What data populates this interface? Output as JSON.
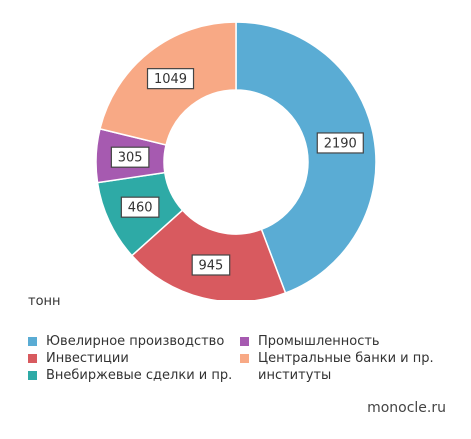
{
  "chart_data": {
    "type": "pie",
    "donut": true,
    "unit_label": "тонн",
    "series": [
      {
        "name": "Ювелирное производство",
        "value": 2190,
        "color": "#5AACD4"
      },
      {
        "name": "Промышленность",
        "value": 305,
        "color": "#A65AB0"
      },
      {
        "name": "Инвестиции",
        "value": 945,
        "color": "#D85A5F"
      },
      {
        "name": "Центральные банки и пр. институты",
        "value": 1049,
        "color": "#F8A985"
      },
      {
        "name": "Внебиржевые сделки и пр.",
        "value": 460,
        "color": "#2EAAA6"
      }
    ],
    "slice_order": [
      "Ювелирное производство",
      "Инвестиции",
      "Внебиржевые сделки и пр.",
      "Промышленность",
      "Центральные банки и пр. институты"
    ],
    "legend_placement": "bottom"
  },
  "legend": {
    "items": [
      {
        "label": "Ювелирное производство",
        "color": "#5AACD4"
      },
      {
        "label": "Промышленность",
        "color": "#A65AB0"
      },
      {
        "label": "Инвестиции",
        "color": "#D85A5F"
      },
      {
        "label": "Центральные банки и пр.\nинституты",
        "color": "#F8A985"
      },
      {
        "label": "Внебиржевые сделки и пр.",
        "color": "#2EAAA6"
      }
    ]
  },
  "source": "monocle.ru"
}
